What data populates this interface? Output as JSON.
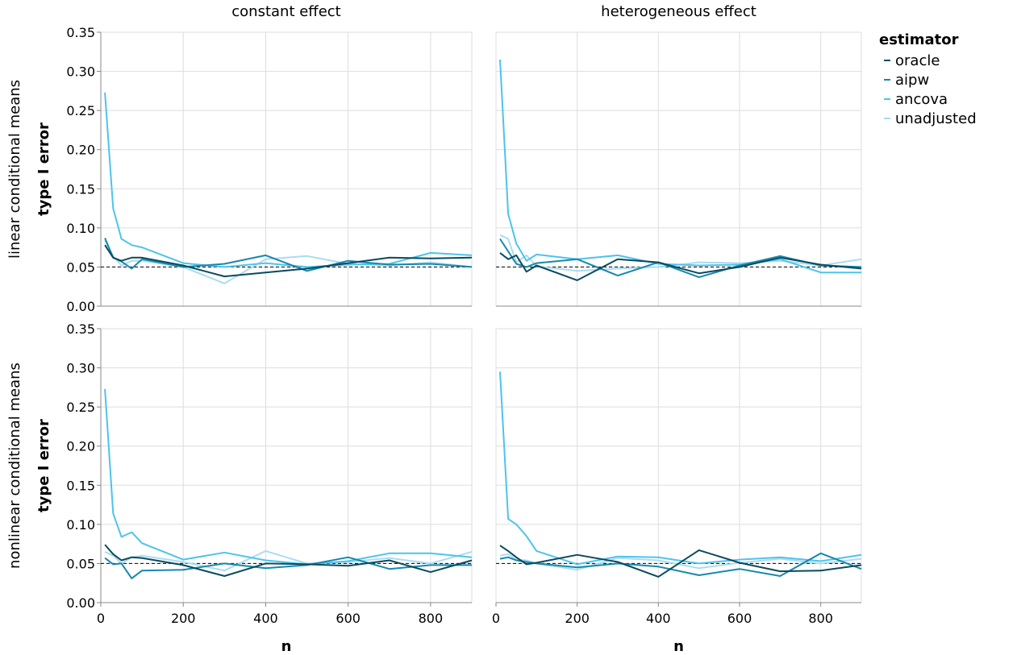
{
  "chart_data": {
    "type": "line",
    "facet_columns": [
      "constant effect",
      "heterogeneous effect"
    ],
    "facet_rows": [
      "linear conditional means",
      "nonlinear conditional means"
    ],
    "xlabel": "n",
    "ylabel": "type I error",
    "xlim": [
      0,
      900
    ],
    "ylim": [
      0,
      0.35
    ],
    "x_ticks": [
      0,
      200,
      400,
      600,
      800
    ],
    "y_ticks": [
      0.0,
      0.05,
      0.1,
      0.15,
      0.2,
      0.25,
      0.3,
      0.35
    ],
    "grid": true,
    "reference_line": 0.05,
    "legend": {
      "title": "estimator",
      "placement": "top-right",
      "entries": [
        "oracle",
        "aipw",
        "ancova",
        "unadjusted"
      ]
    },
    "colors": {
      "oracle": "#0a4a5e",
      "aipw": "#1688ad",
      "ancova": "#4cc4ec",
      "unadjusted": "#aadcf0"
    },
    "panels": [
      {
        "row": "linear conditional means",
        "col": "constant effect",
        "x": [
          10,
          30,
          50,
          75,
          100,
          200,
          300,
          400,
          500,
          600,
          700,
          800,
          900
        ],
        "series": [
          {
            "name": "oracle",
            "values": [
              0.078,
              0.062,
              0.058,
              0.062,
              0.062,
              0.052,
              0.038,
              0.043,
              0.048,
              0.055,
              0.062,
              0.061,
              0.062
            ]
          },
          {
            "name": "aipw",
            "values": [
              0.087,
              0.062,
              0.057,
              0.048,
              0.06,
              0.05,
              0.054,
              0.065,
              0.045,
              0.058,
              0.053,
              0.054,
              0.05
            ]
          },
          {
            "name": "ancova",
            "values": [
              0.273,
              0.125,
              0.086,
              0.078,
              0.075,
              0.055,
              0.05,
              0.055,
              0.05,
              0.053,
              0.054,
              0.068,
              0.065
            ]
          },
          {
            "name": "unadjusted",
            "values": [
              0.084,
              0.064,
              0.052,
              0.058,
              0.058,
              0.05,
              0.029,
              0.06,
              0.064,
              0.054,
              0.052,
              0.056,
              0.05
            ]
          }
        ]
      },
      {
        "row": "linear conditional means",
        "col": "heterogeneous effect",
        "x": [
          10,
          30,
          50,
          75,
          100,
          200,
          300,
          400,
          500,
          600,
          700,
          800,
          900
        ],
        "series": [
          {
            "name": "oracle",
            "values": [
              0.068,
              0.06,
              0.065,
              0.044,
              0.052,
              0.033,
              0.06,
              0.056,
              0.042,
              0.05,
              0.062,
              0.053,
              0.048
            ]
          },
          {
            "name": "aipw",
            "values": [
              0.086,
              0.07,
              0.054,
              0.05,
              0.055,
              0.06,
              0.039,
              0.056,
              0.037,
              0.052,
              0.064,
              0.052,
              0.05
            ]
          },
          {
            "name": "ancova",
            "values": [
              0.315,
              0.118,
              0.08,
              0.058,
              0.066,
              0.06,
              0.065,
              0.054,
              0.052,
              0.053,
              0.06,
              0.043,
              0.043
            ]
          },
          {
            "name": "unadjusted",
            "values": [
              0.091,
              0.086,
              0.056,
              0.065,
              0.051,
              0.045,
              0.048,
              0.05,
              0.056,
              0.055,
              0.058,
              0.052,
              0.06
            ]
          }
        ]
      },
      {
        "row": "nonlinear conditional means",
        "col": "constant effect",
        "x": [
          10,
          30,
          50,
          75,
          100,
          200,
          300,
          400,
          500,
          600,
          700,
          800,
          900
        ],
        "series": [
          {
            "name": "oracle",
            "values": [
              0.074,
              0.062,
              0.054,
              0.058,
              0.057,
              0.048,
              0.034,
              0.05,
              0.049,
              0.047,
              0.054,
              0.039,
              0.054
            ]
          },
          {
            "name": "aipw",
            "values": [
              0.057,
              0.049,
              0.05,
              0.031,
              0.041,
              0.042,
              0.05,
              0.044,
              0.048,
              0.058,
              0.043,
              0.048,
              0.048
            ]
          },
          {
            "name": "ancova",
            "values": [
              0.273,
              0.114,
              0.084,
              0.09,
              0.076,
              0.055,
              0.064,
              0.054,
              0.049,
              0.053,
              0.063,
              0.063,
              0.058
            ]
          },
          {
            "name": "unadjusted",
            "values": [
              0.065,
              0.06,
              0.05,
              0.058,
              0.06,
              0.052,
              0.041,
              0.066,
              0.05,
              0.052,
              0.057,
              0.05,
              0.065
            ]
          }
        ]
      },
      {
        "row": "nonlinear conditional means",
        "col": "heterogeneous effect",
        "x": [
          10,
          30,
          50,
          75,
          100,
          200,
          300,
          400,
          500,
          600,
          700,
          800,
          900
        ],
        "series": [
          {
            "name": "oracle",
            "values": [
              0.073,
              0.066,
              0.058,
              0.049,
              0.051,
              0.061,
              0.052,
              0.033,
              0.067,
              0.051,
              0.04,
              0.041,
              0.048
            ]
          },
          {
            "name": "aipw",
            "values": [
              0.056,
              0.058,
              0.054,
              0.052,
              0.05,
              0.045,
              0.05,
              0.046,
              0.035,
              0.043,
              0.034,
              0.063,
              0.043
            ]
          },
          {
            "name": "ancova",
            "values": [
              0.295,
              0.107,
              0.1,
              0.085,
              0.066,
              0.049,
              0.059,
              0.058,
              0.05,
              0.055,
              0.058,
              0.053,
              0.061
            ]
          },
          {
            "name": "unadjusted",
            "values": [
              0.06,
              0.062,
              0.055,
              0.054,
              0.05,
              0.042,
              0.057,
              0.054,
              0.044,
              0.051,
              0.056,
              0.05,
              0.056
            ]
          }
        ]
      }
    ]
  }
}
